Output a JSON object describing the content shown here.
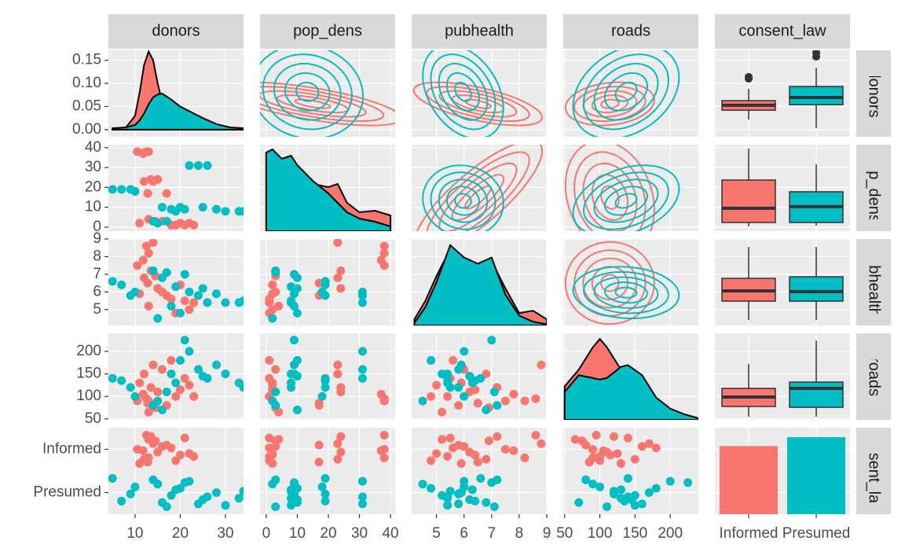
{
  "chart_data": {
    "type": "pairs",
    "variables": [
      {
        "name": "donors",
        "lim": [
          4.1,
          34
        ],
        "ticks": [
          10,
          20,
          30
        ]
      },
      {
        "name": "pop_dens",
        "lim": [
          -2,
          41.5
        ],
        "ticks": [
          0,
          10,
          20,
          30,
          40
        ]
      },
      {
        "name": "pubhealth",
        "lim": [
          4.1,
          9
        ],
        "ticks": [
          5,
          6,
          7,
          8,
          9
        ]
      },
      {
        "name": "roads",
        "lim": [
          48,
          240
        ],
        "ticks": [
          50,
          100,
          150,
          200
        ]
      },
      {
        "name": "consent_law",
        "categories": [
          "Informed",
          "Presumed"
        ],
        "counts": [
          115,
          130
        ],
        "count_lim": [
          0,
          146
        ]
      }
    ],
    "density_ylim": [
      -0.0155,
      0.1716
    ],
    "density_yticks": [
      {
        "value": 0,
        "label": "0.00"
      },
      {
        "value": 0.05,
        "label": "0.05"
      },
      {
        "value": 0.1,
        "label": "0.10"
      },
      {
        "value": 0.15,
        "label": "0.15"
      }
    ],
    "densities": [
      {
        "x": [
          5,
          8,
          10,
          11,
          12,
          13,
          14,
          15,
          16,
          18,
          20,
          22,
          25,
          28,
          31,
          34
        ],
        "values": [
          [
            0.002,
            0.005,
            0.03,
            0.08,
            0.14,
            0.169,
            0.15,
            0.1,
            0.06,
            0.035,
            0.03,
            0.02,
            0.012,
            0.006,
            0.003,
            0.001
          ],
          [
            0.003,
            0.005,
            0.01,
            0.02,
            0.035,
            0.055,
            0.07,
            0.076,
            0.078,
            0.065,
            0.05,
            0.04,
            0.025,
            0.012,
            0.005,
            0.003
          ]
        ]
      },
      {
        "x": [
          0,
          2,
          5,
          8,
          10,
          15,
          20,
          23,
          26,
          30,
          35,
          40
        ],
        "lim": [
          0,
          0.055
        ],
        "values": [
          [
            0.05,
            0.05,
            0.044,
            0.046,
            0.04,
            0.03,
            0.028,
            0.03,
            0.018,
            0.012,
            0.013,
            0.01
          ],
          [
            0.05,
            0.052,
            0.046,
            0.048,
            0.042,
            0.032,
            0.024,
            0.018,
            0.012,
            0.008,
            0.006,
            0.003
          ]
        ]
      },
      {
        "x": [
          4.2,
          4.6,
          5,
          5.5,
          6,
          6.5,
          7,
          7.5,
          8,
          8.5,
          9
        ],
        "lim": [
          0,
          0.7
        ],
        "values": [
          [
            0.05,
            0.2,
            0.4,
            0.62,
            0.52,
            0.48,
            0.52,
            0.3,
            0.1,
            0.12,
            0.05
          ],
          [
            0.02,
            0.15,
            0.35,
            0.65,
            0.55,
            0.5,
            0.55,
            0.25,
            0.08,
            0.03,
            0.01
          ]
        ]
      },
      {
        "x": [
          50,
          70,
          90,
          100,
          110,
          130,
          140,
          160,
          180,
          200,
          220,
          240
        ],
        "lim": [
          0,
          0.0155
        ],
        "values": [
          [
            0.006,
            0.009,
            0.013,
            0.0145,
            0.013,
            0.009,
            0.008,
            0.005,
            0.002,
            0.001,
            0.0005,
            0.0002
          ],
          [
            0.005,
            0.008,
            0.0075,
            0.0072,
            0.0075,
            0.0095,
            0.0098,
            0.008,
            0.004,
            0.002,
            0.001,
            0.0003
          ]
        ]
      }
    ],
    "groups": [
      {
        "color": "#F8766D",
        "obs": {
          "donors": [
            12.5,
            13,
            11.8,
            14,
            13.5,
            12,
            15,
            17,
            21,
            19,
            22,
            16,
            13,
            12.8,
            20,
            18,
            14.5,
            11,
            23,
            10.5
          ],
          "pop_dens": [
            38,
            38,
            37,
            23,
            24,
            23,
            24,
            17,
            1,
            1,
            2,
            3,
            4,
            17,
            2,
            1,
            3,
            2,
            1,
            38
          ],
          "pubhealth": [
            8.6,
            8.2,
            7.8,
            8.8,
            7.2,
            6.8,
            6.2,
            5.8,
            5.5,
            4.8,
            5.0,
            6.0,
            5.2,
            6.5,
            6.4,
            5.6,
            6.9,
            5.9,
            5.4,
            7.5
          ],
          "roads": [
            95,
            90,
            105,
            170,
            120,
            150,
            110,
            80,
            140,
            100,
            125,
            160,
            65,
            85,
            115,
            180,
            75,
            130,
            100,
            90
          ]
        },
        "boxes": [
          [
            10.1,
            13.3,
            15,
            16.6,
            20.7
          ],
          [
            0.4,
            2.35,
            9.5,
            23.7,
            39.5
          ],
          [
            4.41,
            5.48,
            6.06,
            6.77,
            8.55
          ],
          [
            55,
            77.7,
            98.6,
            117.8,
            171.9
          ]
        ],
        "outliers": [
          [
            24.2,
            24.8
          ],
          [],
          [],
          []
        ]
      },
      {
        "color": "#00BFC4",
        "obs": {
          "donors": [
            5,
            7,
            9,
            10,
            14,
            16,
            18,
            20,
            22,
            24,
            26,
            19,
            21,
            30,
            33,
            34,
            15,
            17,
            25,
            28
          ],
          "pop_dens": [
            19,
            19,
            19,
            18,
            3,
            10,
            9,
            10,
            31,
            31,
            31,
            8,
            9,
            8,
            8,
            8,
            2,
            3,
            10,
            9
          ],
          "pubhealth": [
            6.6,
            6.4,
            5.8,
            6,
            7.2,
            6.8,
            5.2,
            4.8,
            6,
            5.8,
            5.4,
            6.3,
            7,
            5.4,
            5.4,
            5.5,
            4.5,
            7.1,
            6.2,
            5.9
          ],
          "roads": [
            140,
            135,
            120,
            100,
            80,
            70,
            150,
            180,
            200,
            160,
            140,
            130,
            225,
            150,
            130,
            120,
            90,
            110,
            145,
            170
          ]
        },
        "boxes": [
          [
            7.1,
            15.2,
            17.7,
            21.5,
            28
          ],
          [
            0.8,
            2.35,
            10.3,
            17.8,
            31.6
          ],
          [
            4.41,
            5.48,
            6.02,
            6.86,
            8.55
          ],
          [
            55,
            75.9,
            117.8,
            131.8,
            224
          ]
        ],
        "outliers": [
          [
            33.2,
            31.8
          ],
          [],
          [],
          []
        ]
      }
    ]
  }
}
